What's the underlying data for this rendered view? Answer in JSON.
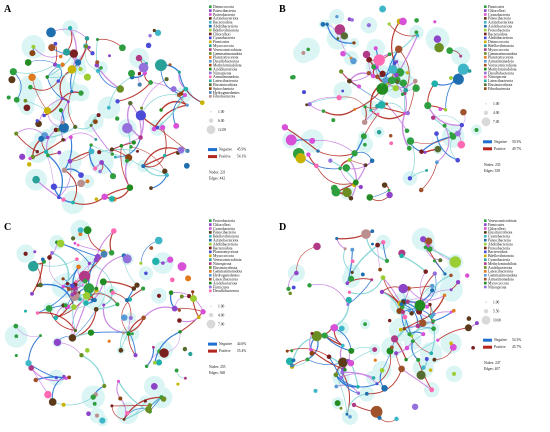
{
  "panels": [
    {
      "letter": "A",
      "phyla": [
        "Deinococcota",
        "Patescibacteria",
        "Proteobacteria",
        "Actinobacteriota",
        "Bacteroidota",
        "Abditibacteriota",
        "Bdellovibrionota",
        "Chloroflexi",
        "Cyanobacteria",
        "Firmicutes",
        "Myxococcota",
        "Verrucomicrobiota",
        "Gemmatimonadota",
        "Planctomycetota",
        "Desulfobacterota",
        "Methylomirabilota",
        "Acidobacteriota",
        "Nitrospirota",
        "Armatimonadota",
        "Latescibacterota",
        "Elusimicrobiota",
        "Spirochaetota",
        "Hydrogenedentes",
        "Fibrobacterota"
      ],
      "degree_labels": [
        "1.00",
        "6.00",
        "12.00"
      ],
      "negative_label": "Negative",
      "negative_pct": "45.9%",
      "positive_label": "Positive",
      "positive_pct": "54.1%",
      "nodes_text": "Nodes: 231",
      "edges_text": "Edges: 442"
    },
    {
      "letter": "B",
      "phyla": [
        "Firmicutes",
        "Chloroflexi",
        "Cyanobacteria",
        "Patescibacteria",
        "Actinobacteriota",
        "Acidobacteriota",
        "Proteobacteria",
        "Bacteroidota",
        "Abditibacteriota",
        "Deinococcota",
        "Bdellovibrionota",
        "Myxococcota",
        "Gemmatimonadota",
        "Planctomycetota",
        "Armatimonadota",
        "Verrucomicrobiota",
        "Methylomirabilota",
        "Desulfobacterota",
        "Nitrospirota",
        "Latescibacterota",
        "Elusimicrobiota",
        "Fibrobacterota"
      ],
      "degree_labels": [
        "1.00",
        "4.00",
        "7.00"
      ],
      "negative_label": "Negative",
      "negative_pct": "50.3%",
      "positive_label": "Positive",
      "positive_pct": "49.7%",
      "nodes_text": "Nodes: 235",
      "edges_text": "Edges: 358"
    },
    {
      "letter": "C",
      "phyla": [
        "Proteobacteria",
        "Chloroflexi",
        "Cyanobacteria",
        "Patescibacteria",
        "Bdellovibrionota",
        "Actinobacteriota",
        "Abditibacteriota",
        "Bacteroidota",
        "Planctomycetota",
        "Myxococcota",
        "Verrucomicrobiota",
        "Nitrospirota",
        "Elusimicrobiota",
        "Gemmatimonadota",
        "Hydrogenedentes",
        "Latescibacterota",
        "Acidobacteriota",
        "Firmicutes",
        "Desulfobacterota"
      ],
      "degree_labels": [
        "1.00",
        "4.00",
        "7.00"
      ],
      "negative_label": "Negative",
      "negative_pct": "44.6%",
      "positive_label": "Positive",
      "positive_pct": "55.4%",
      "nodes_text": "Nodes: 255",
      "edges_text": "Edges: 368"
    },
    {
      "letter": "D",
      "phyla": [
        "Verrucomicrobiota",
        "Firmicutes",
        "Chloroflexi",
        "Elusimicrobiota",
        "Cyanobacteria",
        "Patescibacteria",
        "Abditibacteriota",
        "Proteobacteria",
        "Bacteroidota",
        "Bdellovibrionota",
        "Cyanobacteria",
        "Methylomirabilota",
        "Acidobacteriota",
        "Latescibacterota",
        "Gemmatimonadota",
        "Armatimonadota",
        "Myxococcota",
        "Nitrospirota"
      ],
      "degree_labels": [
        "1.00",
        "5.50",
        "10.00"
      ],
      "negative_label": "Negative",
      "negative_pct": "54.3%",
      "positive_label": "Positive",
      "positive_pct": "45.7%",
      "nodes_text": "Nodes: 247",
      "edges_text": "Edges: 407"
    }
  ],
  "colors": {
    "phyla": [
      "#2e9e3f",
      "#8e44c9",
      "#d84fd8",
      "#5b3a1a",
      "#3fb6c8",
      "#1f6fb0",
      "#9acd32",
      "#7a1f1f",
      "#4b4bd8",
      "#c8b400",
      "#2aa198",
      "#b03a86",
      "#6b8e23",
      "#e07a1f",
      "#5a9bd5",
      "#a0522d",
      "#228b22",
      "#9370db",
      "#ff69b4",
      "#20b2aa",
      "#556b2f",
      "#8b4513",
      "#4682b4",
      "#bc8f8f"
    ],
    "negative": "#1f6fd0",
    "positive": "#b3261e",
    "halo": "#bfeeee"
  }
}
